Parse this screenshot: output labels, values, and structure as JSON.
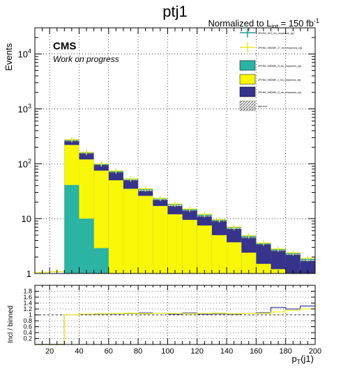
{
  "chart_data": [
    {
      "type": "bar",
      "title": "ptj1",
      "lumi_label": "Normalized to L",
      "lumi_sub": "int",
      "lumi_value": " = 150 fb",
      "lumi_sup": "-1",
      "cms_label": "CMS",
      "status_label": "Work on progress",
      "ylabel": "Events",
      "xlabel_main": "p",
      "xlabel_sub": "T",
      "xlabel_tail": "(j1)",
      "yscale": "log",
      "ylim": [
        1,
        30000
      ],
      "xlim": [
        10,
        200
      ],
      "grid": true,
      "legend_position": "top-right",
      "bin_edges": [
        10,
        20,
        30,
        40,
        50,
        60,
        70,
        80,
        90,
        100,
        110,
        120,
        130,
        140,
        150,
        160,
        170,
        180,
        190,
        200
      ],
      "y_tick_labels": [
        {
          "value": 1,
          "label": "1"
        },
        {
          "value": 10,
          "label": "10"
        },
        {
          "value": 100,
          "label": "10",
          "exp": "2"
        },
        {
          "value": 1000,
          "label": "10",
          "exp": "3"
        },
        {
          "value": 10000,
          "label": "10",
          "exp": "4"
        }
      ],
      "x_tick_labels": [
        "20",
        "40",
        "60",
        "80",
        "100",
        "120",
        "140",
        "160",
        "180",
        "200"
      ],
      "stack": [
        {
          "name": "ZPrH62_W8248h_2l_mu_reopancos_zg1",
          "color": "#2bb3a3",
          "values": [
            0,
            0,
            41,
            10,
            2.9,
            0,
            0,
            0,
            0,
            0,
            0,
            0,
            0,
            0,
            0,
            0,
            0,
            0,
            0
          ]
        },
        {
          "name": "ZPrH62_W8248h_1_mu_reopancos_zg1",
          "color": "#f7f707",
          "values": [
            0,
            0,
            220,
            120,
            75,
            50,
            35,
            26,
            17,
            12,
            9.5,
            7.5,
            5,
            3.7,
            2.4,
            1.5,
            1.2,
            1,
            0.7
          ]
        },
        {
          "name": "ZPrH62_W8248h_2l_mu_reopancos_zg1",
          "color": "#35338c",
          "values": [
            0,
            0,
            260,
            155,
            95,
            70,
            50,
            32,
            22,
            17,
            14,
            11,
            9,
            6.5,
            4.5,
            3.4,
            2.6,
            2.2,
            1.7
          ]
        }
      ],
      "data_series": [
        {
          "name": "ZPrH62_W12_mu_reopancos_zg1",
          "color": "#1f9c8c",
          "values": [
            0,
            0,
            270,
            160,
            98,
            72,
            52,
            34,
            23,
            18,
            14.5,
            11.5,
            9.3,
            6.8,
            4.7,
            3.5,
            2.7,
            2.3,
            1.8
          ]
        },
        {
          "name": "ZPrH62_W8248h_27_mu_reopancos_zg1",
          "color": "#e9e92e",
          "values": [
            1.05,
            1.08,
            275,
            162,
            100,
            74,
            53,
            35,
            23.5,
            18.5,
            15,
            12,
            9.6,
            7,
            4.9,
            3.6,
            2.8,
            2.4,
            1.9
          ]
        }
      ],
      "legend_entries": [
        {
          "label": "ZPrH62_W12_mu_reopancos_zg1",
          "kind": "marker",
          "color": "#1f9c8c"
        },
        {
          "label": "ZPrH62_W8248h_27_mu_reopancos_zg1",
          "kind": "marker",
          "color": "#e9e92e"
        },
        {
          "label": "ZPrH62_W8248h_2l_mu_reopancos_zg1",
          "kind": "box",
          "color": "#2bb3a3"
        },
        {
          "label": "ZPrH62_W8248h_1_mu_reopancos_zg1",
          "kind": "box",
          "color": "#f7f707"
        },
        {
          "label": "ZPrH62_W8248h_2l_mu_reopancos_zg1",
          "kind": "box",
          "color": "#35338c"
        },
        {
          "label": "stat error",
          "kind": "hatch",
          "color": "#555555"
        }
      ]
    },
    {
      "type": "line",
      "ylabel": "Incl / binned",
      "ylim": [
        0,
        2
      ],
      "y_tick_labels": [
        "0.2",
        "0.4",
        "0.6",
        "0.8",
        "1",
        "1.2",
        "1.4",
        "1.6",
        "1.8"
      ],
      "reference_line": 1,
      "series": [
        {
          "color": "#3d3d9e",
          "values": [
            0,
            0,
            1.0,
            1.02,
            1.03,
            1.04,
            1.05,
            1.06,
            1.05,
            1.03,
            1.06,
            1.03,
            1.04,
            1.02,
            1.05,
            1.07,
            1.25,
            1.2,
            1.3
          ]
        },
        {
          "color": "#f0f01a",
          "values": [
            0,
            0,
            1.0,
            1.03,
            1.04,
            1.05,
            1.06,
            1.04,
            1.05,
            1.05,
            1.04,
            1.05,
            1.06,
            1.04,
            1.05,
            1.05,
            1.1,
            1.15,
            1.2
          ]
        }
      ]
    }
  ]
}
